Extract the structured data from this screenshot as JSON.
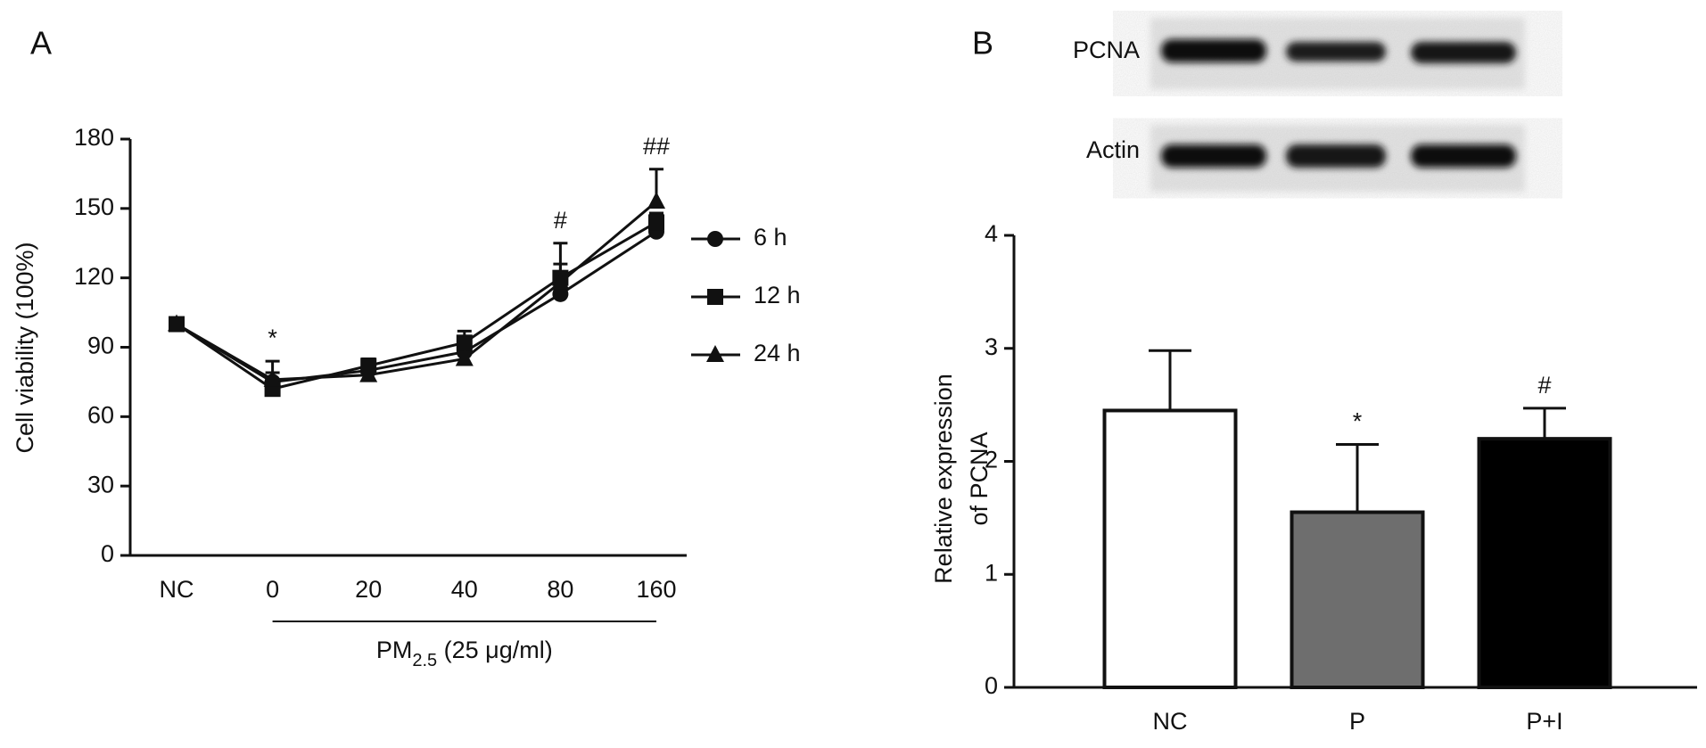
{
  "chart_data": [
    {
      "type": "line",
      "panel_label": "A",
      "y_label": "Cell viability (100%)",
      "x_label_parts": [
        "PM",
        "2.5",
        " (25 μg/ml)"
      ],
      "categories": [
        "NC",
        "0",
        "20",
        "40",
        "80",
        "160"
      ],
      "series": [
        {
          "name": "6 h",
          "color": "#111111",
          "marker": "circle",
          "values": [
            100,
            75,
            80,
            88,
            113,
            140
          ],
          "errors": [
            1,
            4,
            2,
            3,
            2,
            2
          ]
        },
        {
          "name": "12 h",
          "color": "#111111",
          "marker": "square",
          "values": [
            100,
            72,
            82,
            92,
            120,
            144
          ],
          "errors": [
            1,
            4,
            3,
            5,
            15,
            4
          ]
        },
        {
          "name": "24 h",
          "color": "#111111",
          "marker": "triangle",
          "values": [
            100,
            76,
            78,
            85,
            118,
            153
          ],
          "errors": [
            1,
            8,
            2,
            3,
            8,
            14
          ]
        }
      ],
      "annotations": [
        {
          "text": "*",
          "category": "0"
        },
        {
          "text": "#",
          "category": "80"
        },
        {
          "text": "##",
          "category": "160"
        }
      ],
      "ylim": [
        0,
        180
      ],
      "yticks": [
        0,
        30,
        60,
        90,
        120,
        150,
        180
      ],
      "legend": "right"
    },
    {
      "type": "bar",
      "panel_label": "B",
      "blot_labels": [
        "PCNA",
        "Actin"
      ],
      "y_label": [
        "Relative expression",
        "of PCNA"
      ],
      "categories": [
        "NC",
        "P",
        "P+I"
      ],
      "values": [
        2.45,
        1.55,
        2.2
      ],
      "errors": [
        0.53,
        0.6,
        0.27
      ],
      "colors": [
        "#ffffff",
        "#6e6e6e",
        "#000000"
      ],
      "annotations": [
        {
          "text": "*",
          "category": "P"
        },
        {
          "text": "#",
          "category": "P+I"
        }
      ],
      "ylim": [
        0,
        4
      ],
      "yticks": [
        0,
        1,
        2,
        3,
        4
      ]
    }
  ]
}
